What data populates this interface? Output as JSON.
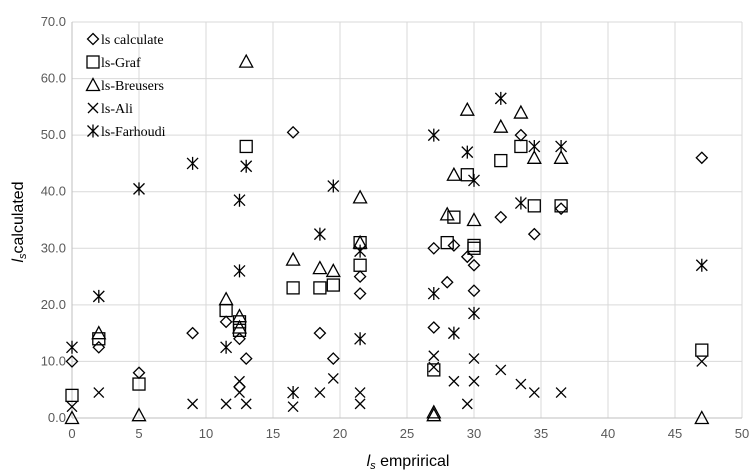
{
  "chart_data": {
    "type": "scatter",
    "xlabel_main": "l",
    "xlabel_sub": "s",
    "xlabel_rest": " emprirical",
    "ylabel_main": "l",
    "ylabel_sub": "s",
    "ylabel_rest": "calculated",
    "xlim": [
      0,
      50
    ],
    "ylim": [
      0,
      70
    ],
    "x_ticks": [
      0,
      5,
      10,
      15,
      20,
      25,
      30,
      35,
      40,
      45,
      50
    ],
    "y_ticks": [
      0,
      10,
      20,
      30,
      40,
      50,
      60,
      70
    ],
    "x_tick_labels": [
      "0",
      "5",
      "10",
      "15",
      "20",
      "25",
      "30",
      "35",
      "40",
      "45",
      "50"
    ],
    "y_tick_labels": [
      "0.0",
      "10.0",
      "20.0",
      "30.0",
      "40.0",
      "50.0",
      "60.0",
      "70.0"
    ],
    "grid": true,
    "legend_position": "top-left",
    "series": [
      {
        "name": "ls calculate",
        "marker": "diamond",
        "points": [
          [
            0,
            10
          ],
          [
            2,
            12.5
          ],
          [
            5,
            8
          ],
          [
            9,
            15
          ],
          [
            11.5,
            17
          ],
          [
            12.5,
            5.5
          ],
          [
            12.5,
            14
          ],
          [
            13,
            10.5
          ],
          [
            16.5,
            50.5
          ],
          [
            18.5,
            15
          ],
          [
            19.5,
            10.5
          ],
          [
            21.5,
            22
          ],
          [
            21.5,
            25
          ],
          [
            27,
            30
          ],
          [
            27,
            16
          ],
          [
            28,
            24
          ],
          [
            28.5,
            30.5
          ],
          [
            29.5,
            28.5
          ],
          [
            30,
            27
          ],
          [
            30,
            22.5
          ],
          [
            32,
            35.5
          ],
          [
            33.5,
            50
          ],
          [
            34.5,
            32.5
          ],
          [
            36.5,
            37
          ],
          [
            47,
            46
          ]
        ]
      },
      {
        "name": "ls-Graf",
        "marker": "square",
        "points": [
          [
            0,
            4
          ],
          [
            2,
            14
          ],
          [
            5,
            6
          ],
          [
            11.5,
            19
          ],
          [
            12.5,
            17
          ],
          [
            12.5,
            15.5
          ],
          [
            13,
            48
          ],
          [
            16.5,
            23
          ],
          [
            18.5,
            23
          ],
          [
            19.5,
            23.5
          ],
          [
            21.5,
            27
          ],
          [
            21.5,
            31
          ],
          [
            27,
            8.5
          ],
          [
            28,
            31
          ],
          [
            28.5,
            35.5
          ],
          [
            29.5,
            43
          ],
          [
            30,
            30
          ],
          [
            30,
            30.5
          ],
          [
            32,
            45.5
          ],
          [
            33.5,
            48
          ],
          [
            34.5,
            37.5
          ],
          [
            36.5,
            37.5
          ],
          [
            47,
            12
          ]
        ]
      },
      {
        "name": "ls-Breusers",
        "marker": "triangle",
        "points": [
          [
            0,
            0
          ],
          [
            2,
            15
          ],
          [
            5,
            0.5
          ],
          [
            11.5,
            21
          ],
          [
            12.5,
            18
          ],
          [
            12.5,
            16
          ],
          [
            13,
            63
          ],
          [
            16.5,
            28
          ],
          [
            18.5,
            26.5
          ],
          [
            19.5,
            26
          ],
          [
            21.5,
            39
          ],
          [
            21.5,
            31
          ],
          [
            27,
            1
          ],
          [
            27,
            0.5
          ],
          [
            28,
            36
          ],
          [
            28.5,
            43
          ],
          [
            29.5,
            54.5
          ],
          [
            30,
            35
          ],
          [
            32,
            51.5
          ],
          [
            33.5,
            54
          ],
          [
            34.5,
            46
          ],
          [
            36.5,
            46
          ],
          [
            47,
            0
          ]
        ]
      },
      {
        "name": "ls-Ali",
        "marker": "x",
        "points": [
          [
            0,
            2
          ],
          [
            2,
            4.5
          ],
          [
            9,
            2.5
          ],
          [
            11.5,
            2.5
          ],
          [
            12.5,
            4.5
          ],
          [
            12.5,
            6.5
          ],
          [
            13,
            2.5
          ],
          [
            16.5,
            2
          ],
          [
            18.5,
            4.5
          ],
          [
            19.5,
            7
          ],
          [
            21.5,
            2.5
          ],
          [
            21.5,
            4.5
          ],
          [
            27,
            11
          ],
          [
            27,
            9
          ],
          [
            28.5,
            6.5
          ],
          [
            29.5,
            2.5
          ],
          [
            30,
            6.5
          ],
          [
            30,
            10.5
          ],
          [
            32,
            8.5
          ],
          [
            33.5,
            6
          ],
          [
            34.5,
            4.5
          ],
          [
            36.5,
            4.5
          ],
          [
            47,
            10
          ]
        ]
      },
      {
        "name": "ls-Farhoudi",
        "marker": "star",
        "points": [
          [
            0,
            12.5
          ],
          [
            2,
            21.5
          ],
          [
            5,
            40.5
          ],
          [
            9,
            45
          ],
          [
            11.5,
            12.5
          ],
          [
            12.5,
            38.5
          ],
          [
            12.5,
            26
          ],
          [
            13,
            44.5
          ],
          [
            16.5,
            4.5
          ],
          [
            18.5,
            32.5
          ],
          [
            19.5,
            41
          ],
          [
            21.5,
            14
          ],
          [
            21.5,
            29.5
          ],
          [
            27,
            50
          ],
          [
            27,
            22
          ],
          [
            28.5,
            15
          ],
          [
            29.5,
            47
          ],
          [
            30,
            18.5
          ],
          [
            30,
            42
          ],
          [
            32,
            56.5
          ],
          [
            33.5,
            38
          ],
          [
            34.5,
            48
          ],
          [
            36.5,
            48
          ],
          [
            47,
            27
          ]
        ]
      }
    ]
  }
}
